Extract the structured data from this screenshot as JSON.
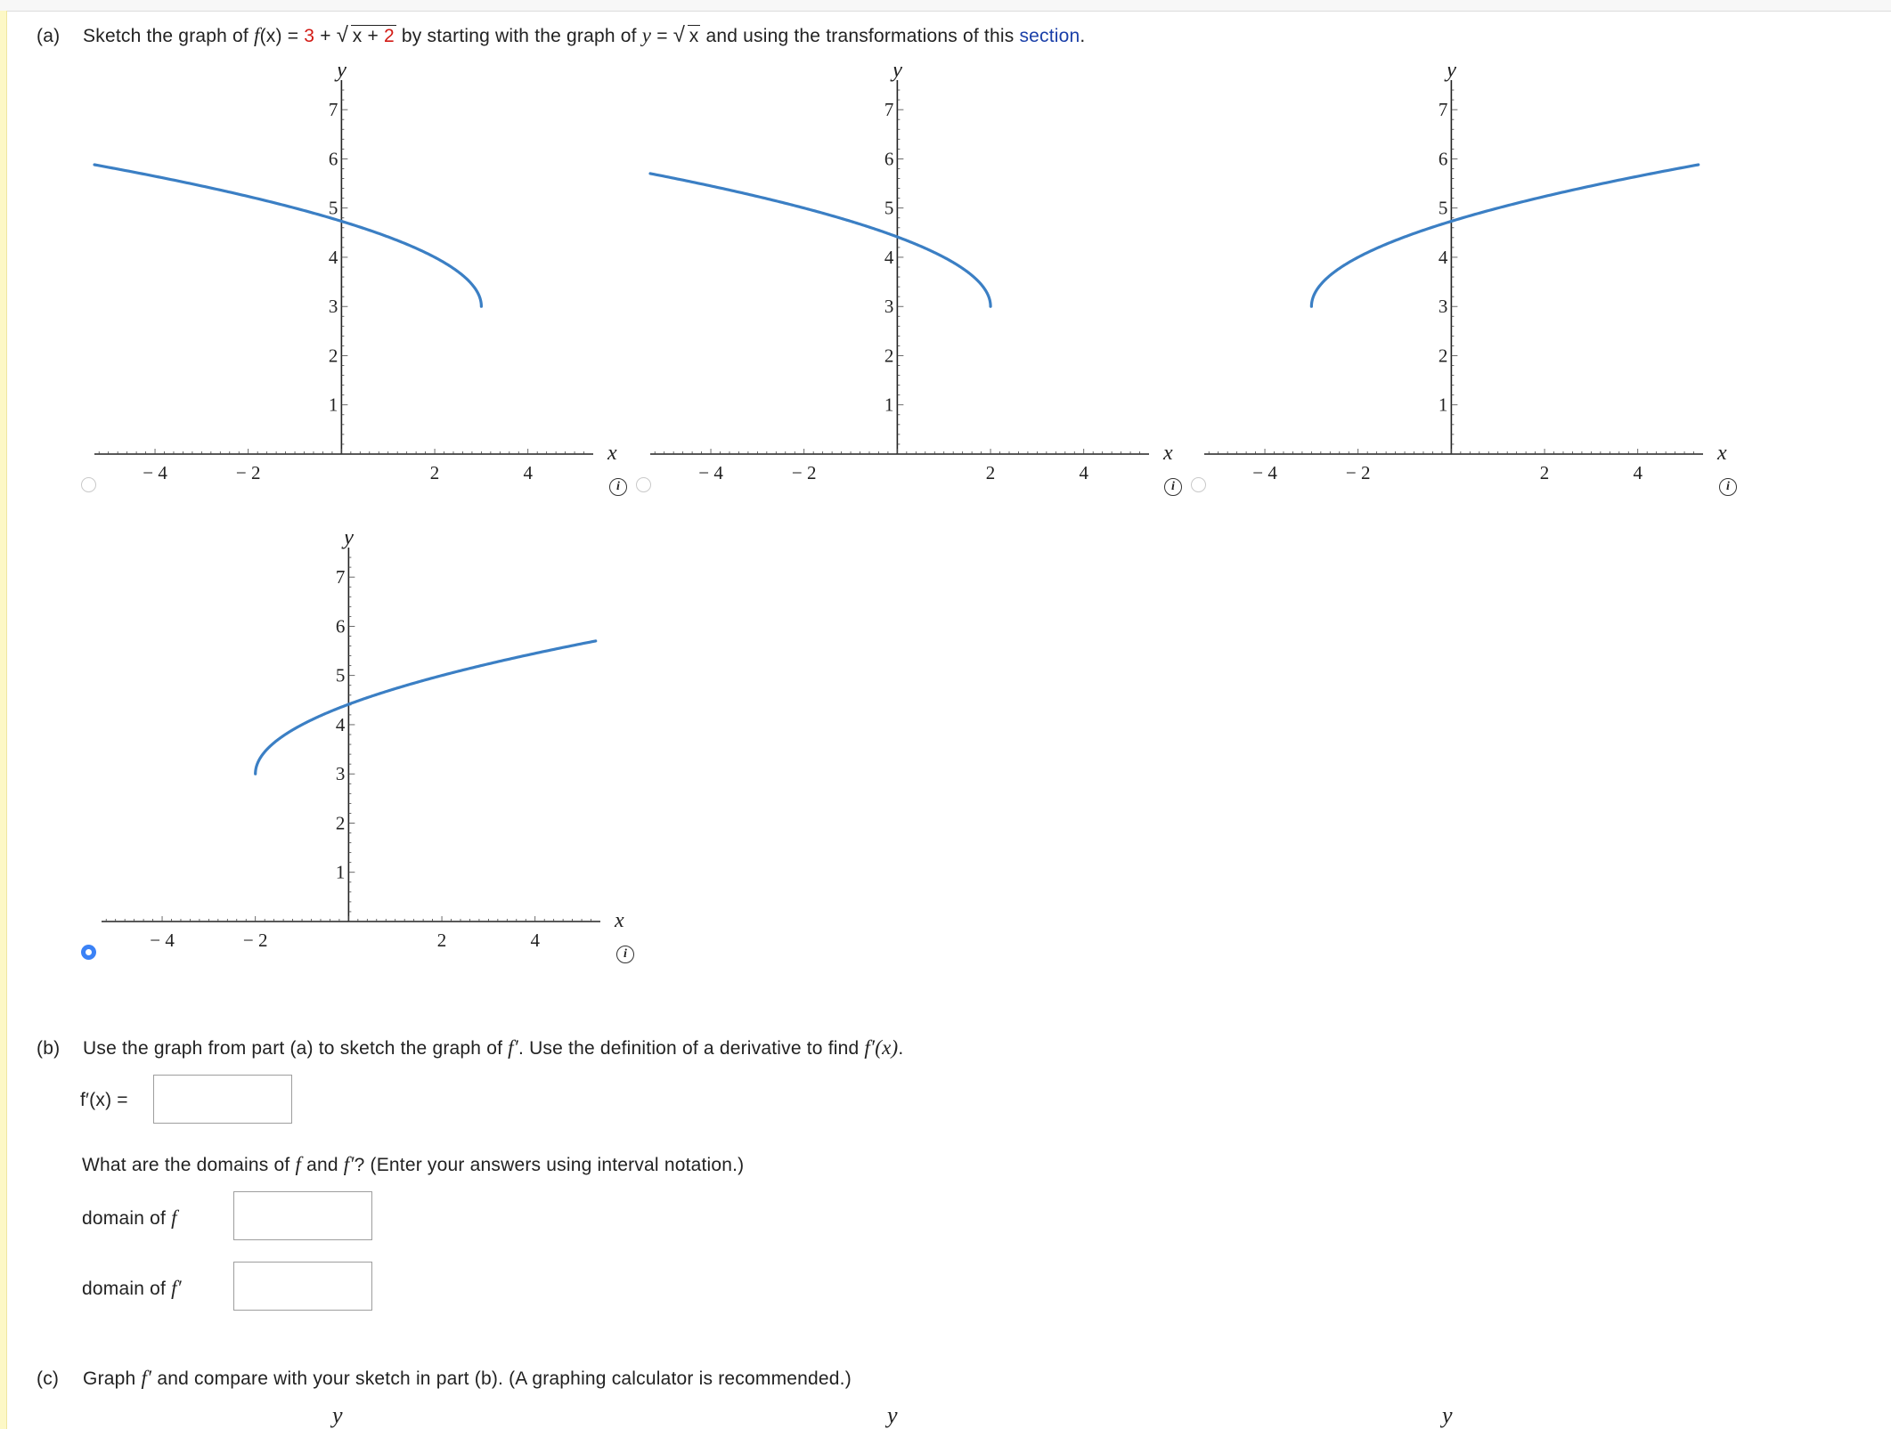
{
  "part_a": {
    "label": "(a)",
    "text1": "Sketch the graph of",
    "f": "f",
    "fx_paren": "(x)",
    "eq": "=",
    "const": "3",
    "plus": "+",
    "radicand_x": "x",
    "radicand_plus": "+",
    "radicand_const": "2",
    "text2": "by starting with the graph of",
    "y": "y",
    "eq2": "=",
    "radicand2": "x",
    "text3": "and using the transformations of this",
    "link": "section",
    "period": "."
  },
  "axis_labels": {
    "x": "x",
    "y": "y"
  },
  "info_glyph": "i",
  "options": [
    {
      "id": "opt1",
      "selected": false
    },
    {
      "id": "opt2",
      "selected": false
    },
    {
      "id": "opt3",
      "selected": false
    },
    {
      "id": "opt4",
      "selected": true
    }
  ],
  "chart_data": [
    {
      "type": "line",
      "function": "y = 3 + sqrt(3 - x)",
      "xlim": [
        -5.3,
        5.4
      ],
      "ylim": [
        0,
        7.6
      ],
      "domain": [
        -5.3,
        3
      ],
      "x_ticks": [
        "-4",
        "-2",
        "2",
        "4"
      ],
      "y_ticks": [
        "1",
        "2",
        "3",
        "4",
        "5",
        "6",
        "7"
      ],
      "xlabel": "x",
      "ylabel": "y",
      "series_color": "#3b7fc4"
    },
    {
      "type": "line",
      "function": "y = 3 + sqrt(2 - x)",
      "xlim": [
        -5.3,
        5.4
      ],
      "ylim": [
        0,
        7.6
      ],
      "domain": [
        -5.3,
        2
      ],
      "x_ticks": [
        "-4",
        "-2",
        "2",
        "4"
      ],
      "y_ticks": [
        "1",
        "2",
        "3",
        "4",
        "5",
        "6",
        "7"
      ],
      "xlabel": "x",
      "ylabel": "y",
      "series_color": "#3b7fc4"
    },
    {
      "type": "line",
      "function": "y = 3 + sqrt(x + 3)",
      "xlim": [
        -5.3,
        5.4
      ],
      "ylim": [
        0,
        7.6
      ],
      "domain": [
        -3,
        5.3
      ],
      "x_ticks": [
        "-4",
        "-2",
        "2",
        "4"
      ],
      "y_ticks": [
        "1",
        "2",
        "3",
        "4",
        "5",
        "6",
        "7"
      ],
      "xlabel": "x",
      "ylabel": "y",
      "series_color": "#3b7fc4"
    },
    {
      "type": "line",
      "function": "y = 3 + sqrt(x + 2)",
      "xlim": [
        -5.3,
        5.4
      ],
      "ylim": [
        0,
        7.6
      ],
      "domain": [
        -2,
        5.3
      ],
      "x_ticks": [
        "-4",
        "-2",
        "2",
        "4"
      ],
      "y_ticks": [
        "1",
        "2",
        "3",
        "4",
        "5",
        "6",
        "7"
      ],
      "xlabel": "x",
      "ylabel": "y",
      "series_color": "#3b7fc4"
    }
  ],
  "part_b": {
    "label": "(b)",
    "text1": "Use the graph from part (a) to sketch the graph of",
    "fprime": "f′",
    "text2": ". Use the definition of a derivative to find",
    "fprime_x": "f′(x)",
    "period": ".",
    "answer_label": "f′(x)  =",
    "domains_q1": "What are the domains of",
    "f": "f",
    "and": "and",
    "domains_q2": "? (Enter your answers using interval notation.)",
    "domain_f_label": "domain of",
    "domain_fprime_label": "domain of",
    "fprime_value": "",
    "domain_f_value": "",
    "domain_fprime_value": ""
  },
  "part_c": {
    "label": "(c)",
    "text1": "Graph",
    "fprime": "f′",
    "text2": "and compare with your sketch in part (b). (A graphing calculator is recommended.)"
  }
}
